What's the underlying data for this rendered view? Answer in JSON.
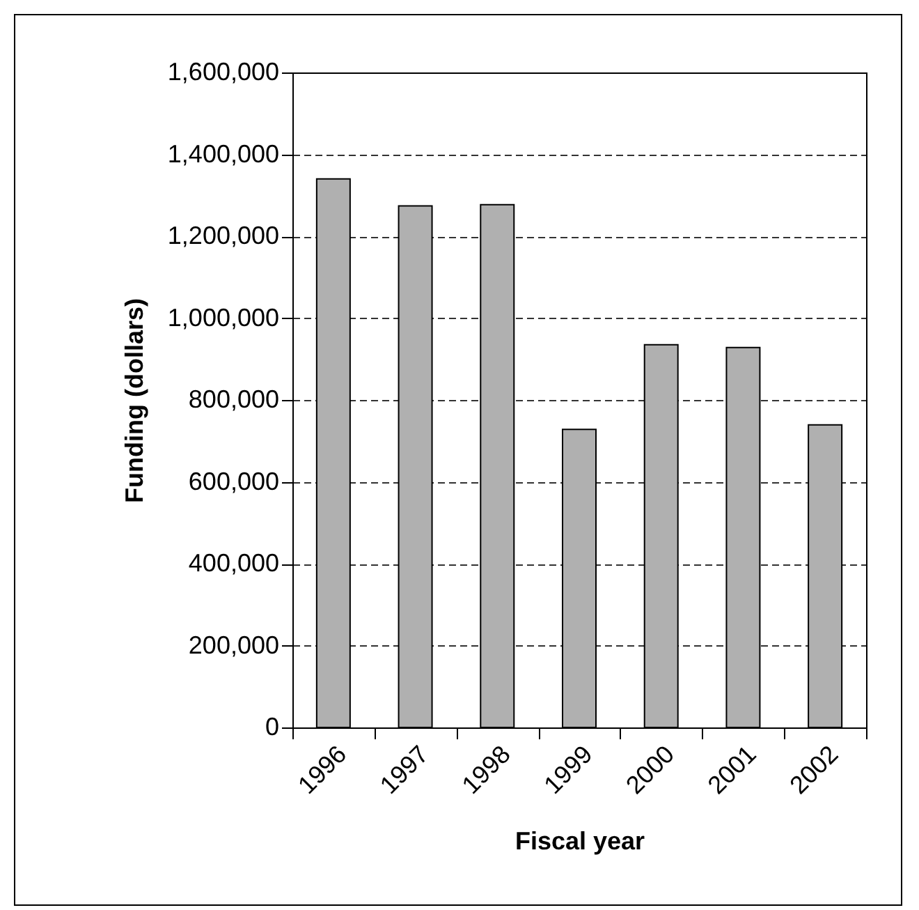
{
  "chart_data": {
    "type": "bar",
    "xlabel": "Fiscal year",
    "ylabel": "Funding (dollars)",
    "categories": [
      "1996",
      "1997",
      "1998",
      "1999",
      "2000",
      "2001",
      "2002"
    ],
    "values": [
      1340000,
      1274000,
      1277000,
      728000,
      935000,
      928000,
      739000
    ],
    "color": "#b0b0b0",
    "ylim": [
      0,
      1600000
    ],
    "yticks": [
      0,
      {
        "value": 200000,
        "label": "200,000"
      },
      {
        "value": 400000,
        "label": "400,000"
      },
      {
        "value": 600000,
        "label": "600,000"
      },
      {
        "value": 800000,
        "label": "800,000"
      },
      {
        "value": 1000000,
        "label": "1,000,000"
      },
      {
        "value": 1200000,
        "label": "1,200,000"
      },
      {
        "value": 1400000,
        "label": "1,400,000"
      },
      {
        "value": 1600000,
        "label": "1,600,000"
      }
    ],
    "grid": "y",
    "line_style": "dashed"
  }
}
